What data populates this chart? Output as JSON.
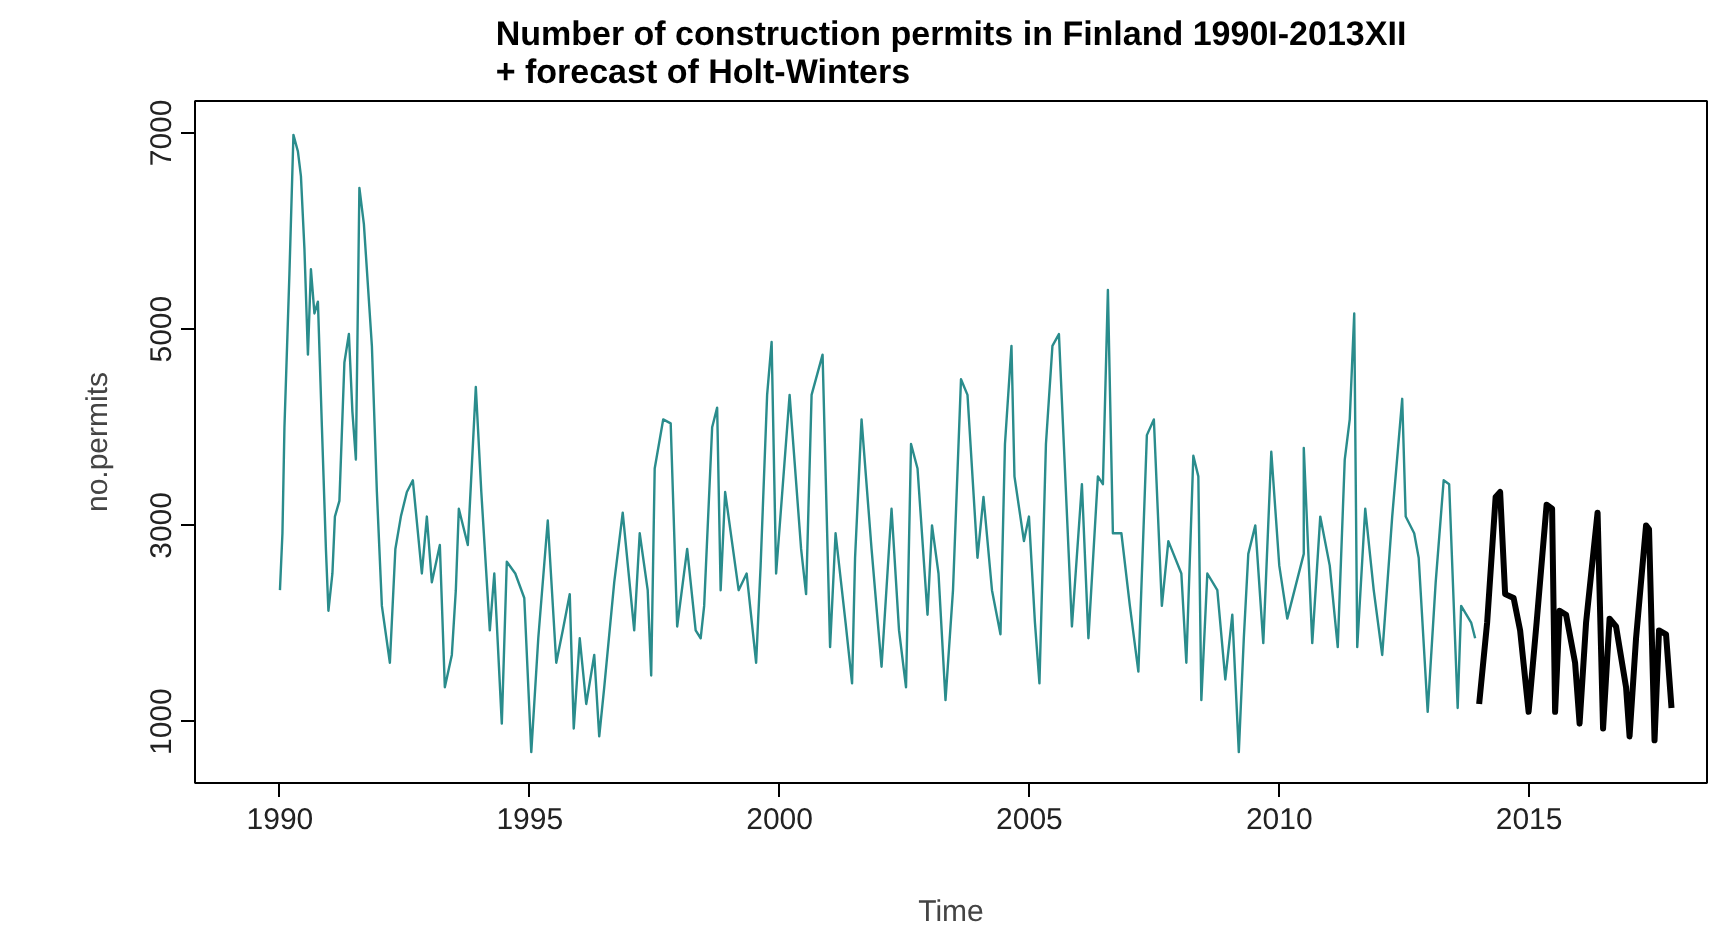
{
  "chart_data": {
    "type": "line",
    "title": "Number of construction permits in Finland 1990I-2013XII\n+ forecast of Holt-Winters",
    "xlabel": "Time",
    "ylabel": "no.permits",
    "xlim": [
      1988.3,
      2018.56
    ],
    "ylim": [
      375,
      7325
    ],
    "xticks": [
      1990,
      1995,
      2000,
      2005,
      2010,
      2015
    ],
    "yticks": [
      1000,
      3000,
      5000,
      7000
    ],
    "grid": false,
    "marker": "none",
    "line_style": "solid",
    "series": [
      {
        "color": "#2a8c8c",
        "x": [
          1990.0,
          1990.05,
          1990.09,
          1990.19,
          1990.27,
          1990.36,
          1990.42,
          1990.49,
          1990.56,
          1990.62,
          1990.69,
          1990.76,
          1990.84,
          1990.92,
          1990.97,
          1991.05,
          1991.1,
          1991.19,
          1991.29,
          1991.38,
          1991.45,
          1991.52,
          1991.59,
          1991.68,
          1991.84,
          1991.94,
          1992.04,
          1992.2,
          1992.31,
          1992.42,
          1992.54,
          1992.66,
          1992.84,
          1992.94,
          1993.04,
          1993.2,
          1993.3,
          1993.44,
          1993.52,
          1993.58,
          1993.76,
          1993.92,
          1994.03,
          1994.2,
          1994.29,
          1994.44,
          1994.54,
          1994.71,
          1994.89,
          1995.03,
          1995.17,
          1995.36,
          1995.53,
          1995.66,
          1995.8,
          1995.88,
          1996.0,
          1996.13,
          1996.29,
          1996.39,
          1996.49,
          1996.69,
          1996.86,
          1997.09,
          1997.2,
          1997.36,
          1997.43,
          1997.5,
          1997.67,
          1997.82,
          1997.95,
          1998.15,
          1998.32,
          1998.42,
          1998.49,
          1998.65,
          1998.75,
          1998.82,
          1998.91,
          1999.18,
          1999.34,
          1999.53,
          1999.62,
          1999.75,
          1999.84,
          1999.93,
          2000.2,
          2000.43,
          2000.53,
          2000.64,
          2000.86,
          2001.01,
          2001.12,
          2001.32,
          2001.45,
          2001.51,
          2001.64,
          2001.84,
          2002.04,
          2002.24,
          2002.39,
          2002.53,
          2002.63,
          2002.76,
          2002.96,
          2003.05,
          2003.18,
          2003.32,
          2003.47,
          2003.63,
          2003.76,
          2003.96,
          2004.08,
          2004.25,
          2004.42,
          2004.51,
          2004.64,
          2004.7,
          2004.89,
          2004.99,
          2005.11,
          2005.2,
          2005.33,
          2005.46,
          2005.59,
          2005.85,
          2006.05,
          2006.18,
          2006.37,
          2006.47,
          2006.57,
          2006.67,
          2006.84,
          2007.01,
          2007.18,
          2007.35,
          2007.49,
          2007.65,
          2007.78,
          2008.04,
          2008.14,
          2008.28,
          2008.38,
          2008.44,
          2008.56,
          2008.76,
          2008.92,
          2009.06,
          2009.19,
          2009.29,
          2009.38,
          2009.52,
          2009.68,
          2009.84,
          2010.0,
          2010.16,
          2010.49,
          2010.49,
          2010.66,
          2010.82,
          2011.01,
          2011.17,
          2011.31,
          2011.41,
          2011.5,
          2011.56,
          2011.72,
          2011.89,
          2012.06,
          2012.26,
          2012.46,
          2012.53,
          2012.7,
          2012.79,
          2012.97,
          2013.13,
          2013.29,
          2013.4,
          2013.57,
          2013.64,
          2013.84,
          2013.92
        ],
        "values": [
          2340,
          2920,
          4000,
          5570,
          6980,
          6810,
          6560,
          5820,
          4740,
          5610,
          5160,
          5280,
          4000,
          2760,
          2130,
          2510,
          3090,
          3250,
          4660,
          4950,
          4160,
          3670,
          6440,
          6070,
          4830,
          3340,
          2180,
          1600,
          2760,
          3090,
          3340,
          3460,
          2510,
          3090,
          2420,
          2800,
          1350,
          1680,
          2340,
          3170,
          2800,
          4410,
          3340,
          1930,
          2510,
          980,
          2630,
          2510,
          2260,
          690,
          1850,
          3050,
          1600,
          1930,
          2300,
          930,
          1850,
          1180,
          1680,
          850,
          1350,
          2420,
          3130,
          1930,
          2920,
          2340,
          1470,
          3580,
          4080,
          4040,
          1970,
          2760,
          1930,
          1850,
          2180,
          4000,
          4200,
          2340,
          3340,
          2340,
          2510,
          1600,
          2590,
          4330,
          4870,
          2510,
          4330,
          2760,
          2300,
          4330,
          4740,
          1760,
          2920,
          2010,
          1390,
          2670,
          4080,
          2760,
          1560,
          3170,
          1930,
          1350,
          3830,
          3580,
          2090,
          3000,
          2510,
          1220,
          2340,
          4490,
          4330,
          2670,
          3290,
          2340,
          1890,
          3830,
          4830,
          3500,
          2840,
          3090,
          2010,
          1390,
          3830,
          4830,
          4950,
          1970,
          3420,
          1850,
          3500,
          3420,
          5400,
          2920,
          2920,
          2180,
          1510,
          3920,
          4080,
          2180,
          2840,
          2510,
          1600,
          3710,
          3500,
          1220,
          2510,
          2340,
          1430,
          2090,
          690,
          1850,
          2710,
          3000,
          1800,
          3750,
          2590,
          2050,
          2710,
          3790,
          1800,
          3090,
          2590,
          1760,
          3670,
          4080,
          5160,
          1760,
          3170,
          2340,
          1680,
          3090,
          4290,
          3090,
          2920,
          2670,
          1100,
          2420,
          3460,
          3420,
          1140,
          2180,
          2010,
          1850
        ]
      },
      {
        "color": "#000000",
        "x": [
          2014.0,
          2014.16,
          2014.33,
          2014.42,
          2014.52,
          2014.69,
          2014.82,
          2014.99,
          2015.15,
          2015.35,
          2015.46,
          2015.52,
          2015.61,
          2015.74,
          2015.92,
          2016.01,
          2016.14,
          2016.37,
          2016.48,
          2016.61,
          2016.74,
          2016.94,
          2017.01,
          2017.14,
          2017.34,
          2017.4,
          2017.51,
          2017.6,
          2017.74,
          2017.85
        ],
        "values": [
          1180,
          2010,
          3290,
          3340,
          2300,
          2260,
          1930,
          1100,
          2010,
          3210,
          3170,
          1100,
          2130,
          2090,
          1600,
          980,
          2010,
          3130,
          930,
          2050,
          1970,
          1350,
          850,
          1850,
          3000,
          2960,
          810,
          1930,
          1890,
          1140
        ]
      }
    ]
  }
}
